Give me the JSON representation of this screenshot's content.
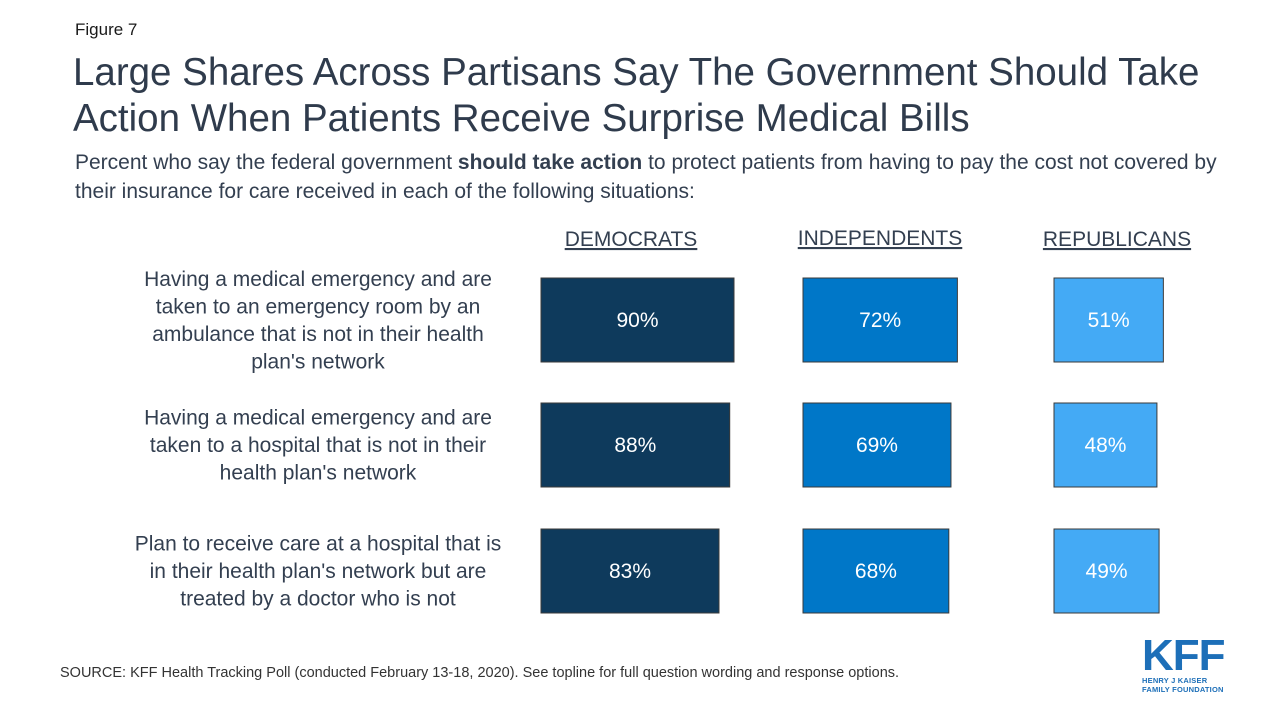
{
  "figure_label": "Figure 7",
  "title": "Large Shares Across Partisans Say The Government Should Take Action When Patients Receive Surprise Medical Bills",
  "subtitle": {
    "before": "Percent who say the federal government ",
    "bold": "should take action",
    "after": " to protect patients from having to pay the cost not covered by their insurance for care received in each of the following situations:"
  },
  "chart_data": {
    "type": "bar",
    "orientation": "horizontal",
    "categories": [
      "Having a medical emergency and are taken to an emergency room by an ambulance that is not in their health plan's network",
      "Having a medical emergency and are taken to a hospital that is not in their health plan's network",
      "Plan to receive care at a hospital that is in their health plan's network but are treated by a doctor who is not"
    ],
    "category_lines": [
      [
        "Having a medical emergency and are",
        "taken to an emergency room by an",
        "ambulance that is not in their health",
        "plan's network"
      ],
      [
        "Having a medical emergency and are",
        "taken to a hospital that is not in their",
        "health plan's network"
      ],
      [
        "Plan to receive care at a hospital that is",
        "in their health plan's network but are",
        "treated by a doctor who is not"
      ]
    ],
    "series": [
      {
        "name": "DEMOCRATS",
        "values": [
          90,
          88,
          83
        ],
        "labels": [
          "90%",
          "88%",
          "83%"
        ],
        "color": "#0e3a5c"
      },
      {
        "name": "INDEPENDENTS",
        "values": [
          72,
          69,
          68
        ],
        "labels": [
          "72%",
          "69%",
          "68%"
        ],
        "color": "#0077c8"
      },
      {
        "name": "REPUBLICANS",
        "values": [
          51,
          48,
          49
        ],
        "labels": [
          "51%",
          "48%",
          "49%"
        ],
        "color": "#44aaf5"
      }
    ],
    "unit": "%",
    "xlim": [
      0,
      100
    ],
    "grid": false,
    "legend": "column headers above bars"
  },
  "source": "SOURCE: KFF Health Tracking Poll (conducted February 13-18, 2020). See topline for full question wording and response options.",
  "logo": {
    "mark": "KFF",
    "line1": "HENRY J KAISER",
    "line2": "FAMILY FOUNDATION"
  }
}
